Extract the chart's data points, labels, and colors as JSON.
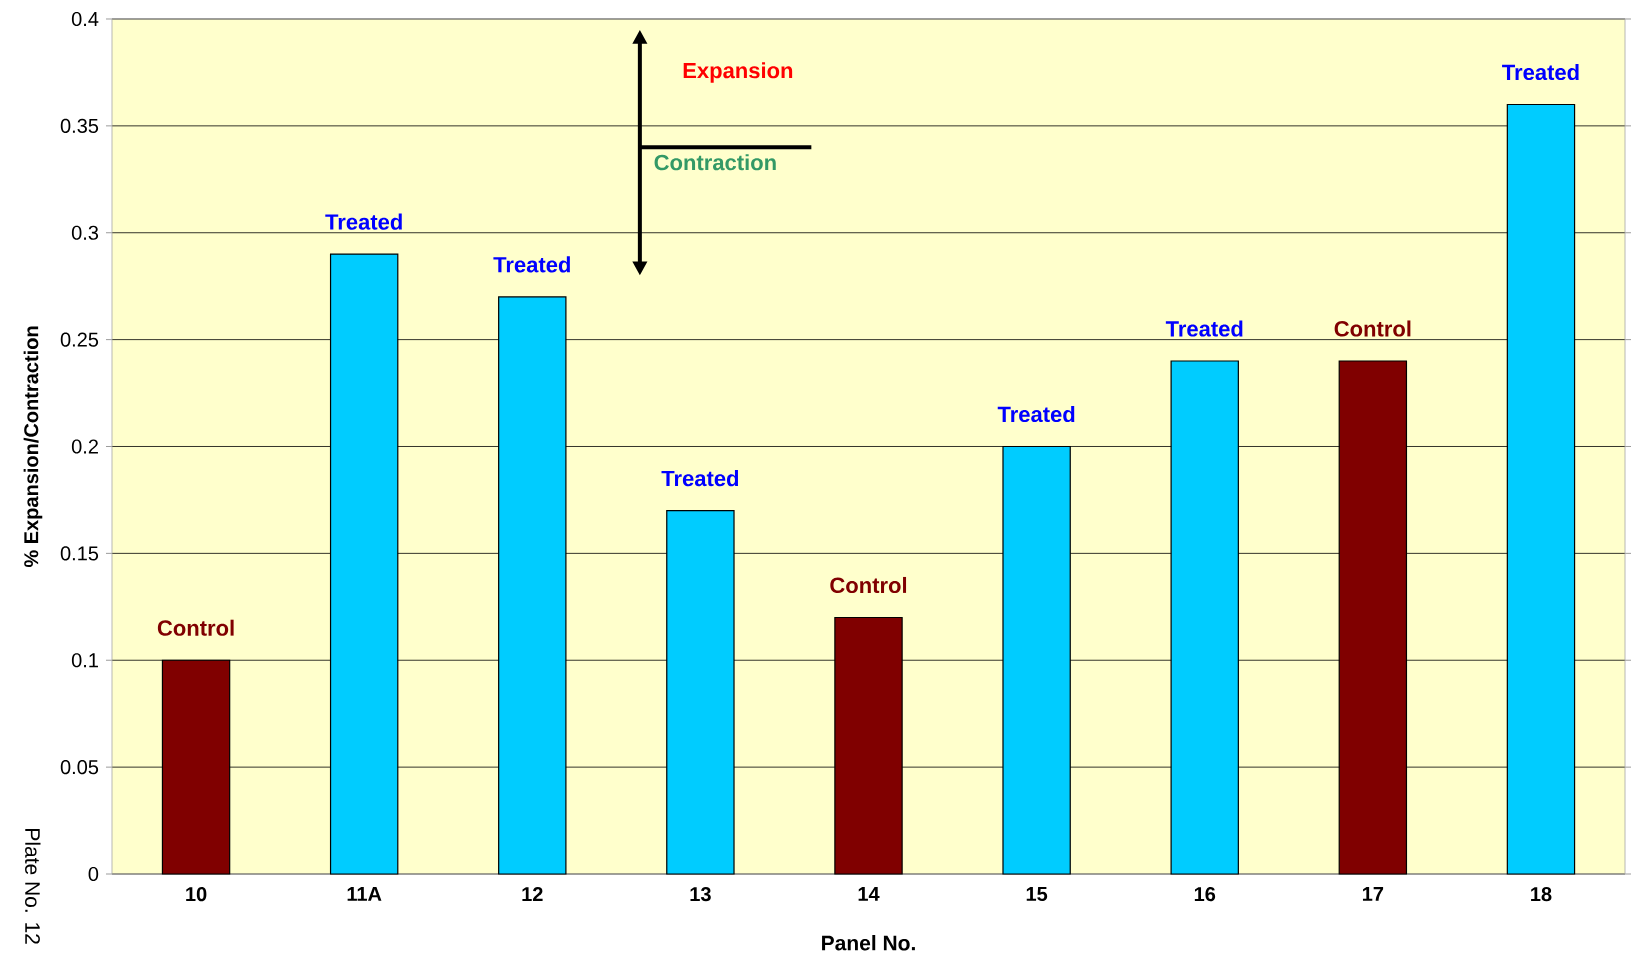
{
  "chart_data": {
    "type": "bar",
    "xlabel": "Panel No.",
    "ylabel": "% Expansion/Contraction",
    "categories": [
      "10",
      "11A",
      "12",
      "13",
      "14",
      "15",
      "16",
      "17",
      "18"
    ],
    "values": [
      0.1,
      0.29,
      0.27,
      0.17,
      0.12,
      0.2,
      0.24,
      0.24,
      0.36
    ],
    "colors": [
      "#800000",
      "#00ccff",
      "#00ccff",
      "#00ccff",
      "#800000",
      "#00ccff",
      "#00ccff",
      "#800000",
      "#00ccff"
    ],
    "ylim": [
      0,
      0.4
    ],
    "yticks": [
      0,
      0.05,
      0.1,
      0.15,
      0.2,
      0.25,
      0.3,
      0.35,
      0.4
    ],
    "grid": "y",
    "annotations": [
      {
        "text": "Control",
        "x": "10",
        "y": 0.1
      },
      {
        "text": "Treated",
        "x": "11A",
        "y": 0.29
      },
      {
        "text": "Treated",
        "x": "12",
        "y": 0.27
      },
      {
        "text": "Treated",
        "x": "13",
        "y": 0.17
      },
      {
        "text": "Control",
        "x": "14",
        "y": 0.12
      },
      {
        "text": "Treated",
        "x": "15",
        "y": 0.2
      },
      {
        "text": "Treated",
        "x": "16",
        "y": 0.24
      },
      {
        "text": "Control",
        "x": "17",
        "y": 0.24
      },
      {
        "text": "Treated",
        "x": "18",
        "y": 0.36
      },
      "Expansion",
      "Contraction",
      "Plate No. 12"
    ]
  }
}
